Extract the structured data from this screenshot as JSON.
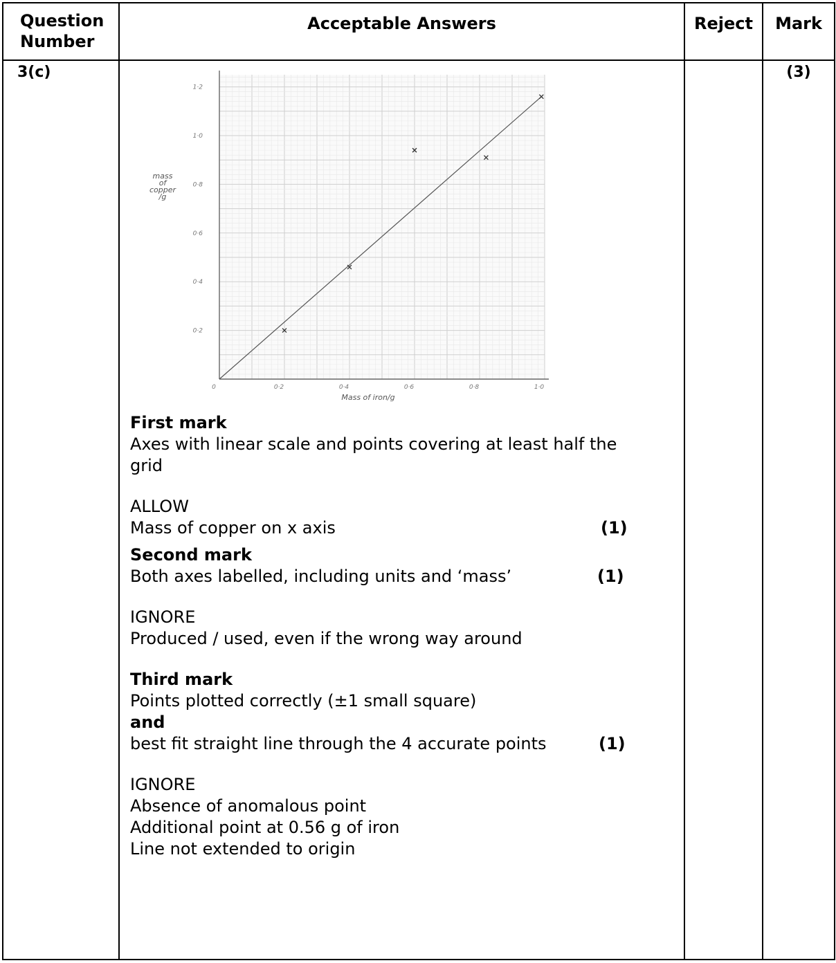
{
  "header": {
    "question_number": "Question Number",
    "acceptable_answers": "Acceptable Answers",
    "reject": "Reject",
    "mark": "Mark"
  },
  "row": {
    "question": "3(c)",
    "mark": "(3)",
    "reject": ""
  },
  "graph": {
    "y_label_lines": [
      "mass",
      "of",
      "copper",
      "/g"
    ],
    "x_label": "Mass of iron/g",
    "y_ticks": [
      "1·2",
      "1·0",
      "0·8",
      "0·6",
      "0·4",
      "0·2"
    ],
    "x_ticks": [
      "0",
      "0·2",
      "0·4",
      "0·6",
      "0·8",
      "1·0"
    ]
  },
  "chart_data": {
    "type": "scatter",
    "xlabel": "Mass of iron/g",
    "ylabel": "mass of copper /g",
    "xlim": [
      0,
      1.0
    ],
    "ylim": [
      0,
      1.25
    ],
    "x_ticks": [
      0,
      0.2,
      0.4,
      0.6,
      0.8,
      1.0
    ],
    "y_ticks": [
      0.2,
      0.4,
      0.6,
      0.8,
      1.0,
      1.2
    ],
    "grid": true,
    "points": [
      {
        "x": 0.2,
        "y": 0.2
      },
      {
        "x": 0.4,
        "y": 0.46
      },
      {
        "x": 0.6,
        "y": 0.94
      },
      {
        "x": 0.82,
        "y": 0.91
      },
      {
        "x": 0.99,
        "y": 1.16
      }
    ],
    "best_fit_line": {
      "x": [
        0,
        0.99
      ],
      "y": [
        0,
        1.16
      ]
    }
  },
  "answers": {
    "first_mark_heading": "First mark",
    "first_mark_text_1": "Axes with linear scale and points covering at least half the",
    "first_mark_text_2": "grid",
    "allow_label": "ALLOW",
    "allow_text": "Mass of copper on x axis",
    "first_mark_value": "(1)",
    "second_mark_heading": "Second mark",
    "second_mark_text": "Both axes labelled, including units and ‘mass’",
    "second_mark_value": "(1)",
    "ignore_label_1": "IGNORE",
    "ignore_text_1": "Produced / used, even if the wrong way around",
    "third_mark_heading": "Third mark",
    "third_mark_text_1": "Points plotted correctly (±1 small square)",
    "third_mark_and": "and",
    "third_mark_text_2": "best fit straight line through the 4 accurate points",
    "third_mark_value": "(1)",
    "ignore_label_2": "IGNORE",
    "ignore_items": [
      "Absence of anomalous point",
      "Additional  point at 0.56 g of iron",
      "Line not extended to origin"
    ]
  }
}
